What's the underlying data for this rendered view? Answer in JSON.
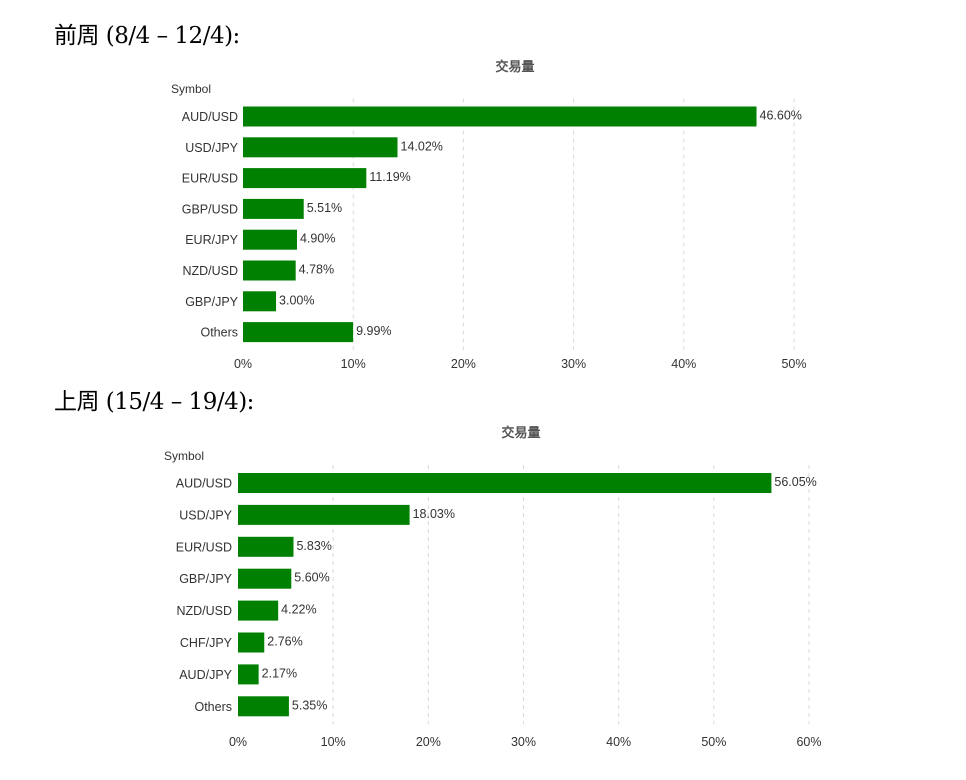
{
  "headings": {
    "week1": "前周 (8/4  –  12/4):",
    "week2": "上周 (15/4  –  19/4):"
  },
  "colors": {
    "bar": "#008000"
  },
  "chart_data": [
    {
      "type": "bar",
      "orientation": "horizontal",
      "title": "交易量",
      "ylabel": "Symbol",
      "categories": [
        "AUD/USD",
        "USD/JPY",
        "EUR/USD",
        "GBP/USD",
        "EUR/JPY",
        "NZD/USD",
        "GBP/JPY",
        "Others"
      ],
      "values": [
        46.6,
        14.02,
        11.19,
        5.51,
        4.9,
        4.78,
        3.0,
        9.99
      ],
      "data_labels": [
        "46.60%",
        "14.02%",
        "11.19%",
        "5.51%",
        "4.90%",
        "4.78%",
        "3.00%",
        "9.99%"
      ],
      "xticks": [
        "0%",
        "10%",
        "20%",
        "30%",
        "40%",
        "50%"
      ],
      "xlim": [
        0,
        50
      ],
      "grid": true
    },
    {
      "type": "bar",
      "orientation": "horizontal",
      "title": "交易量",
      "ylabel": "Symbol",
      "categories": [
        "AUD/USD",
        "USD/JPY",
        "EUR/USD",
        "GBP/JPY",
        "NZD/USD",
        "CHF/JPY",
        "AUD/JPY",
        "Others"
      ],
      "values": [
        56.05,
        18.03,
        5.83,
        5.6,
        4.22,
        2.76,
        2.17,
        5.35
      ],
      "data_labels": [
        "56.05%",
        "18.03%",
        "5.83%",
        "5.60%",
        "4.22%",
        "2.76%",
        "2.17%",
        "5.35%"
      ],
      "xticks": [
        "0%",
        "10%",
        "20%",
        "30%",
        "40%",
        "50%",
        "60%"
      ],
      "xlim": [
        0,
        60
      ],
      "grid": true
    }
  ]
}
